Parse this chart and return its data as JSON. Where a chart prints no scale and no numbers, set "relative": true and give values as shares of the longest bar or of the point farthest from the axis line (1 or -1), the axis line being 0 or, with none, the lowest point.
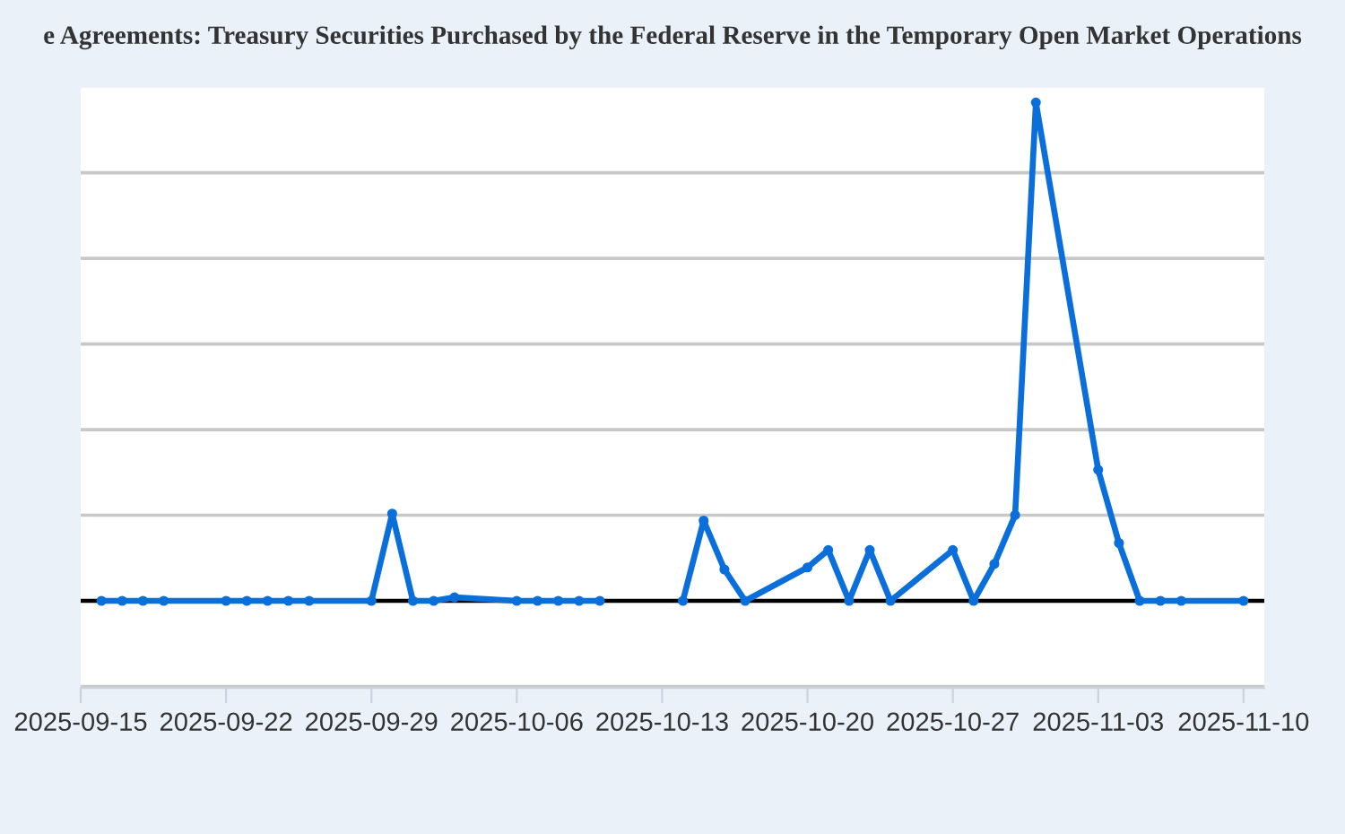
{
  "chart_data": {
    "type": "line",
    "title": "e Agreements: Treasury Securities Purchased by the Federal Reserve in the Temporary Open Market Operations",
    "x": [
      "2025-09-16",
      "2025-09-17",
      "2025-09-18",
      "2025-09-19",
      "2025-09-22",
      "2025-09-23",
      "2025-09-24",
      "2025-09-25",
      "2025-09-26",
      "2025-09-29",
      "2025-09-30",
      "2025-10-01",
      "2025-10-02",
      "2025-10-03",
      "2025-10-06",
      "2025-10-07",
      "2025-10-08",
      "2025-10-09",
      "2025-10-10",
      "2025-10-13",
      "2025-10-14",
      "2025-10-15",
      "2025-10-16",
      "2025-10-17",
      "2025-10-20",
      "2025-10-21",
      "2025-10-22",
      "2025-10-23",
      "2025-10-24",
      "2025-10-27",
      "2025-10-28",
      "2025-10-29",
      "2025-10-30",
      "2025-10-31",
      "2025-11-03",
      "2025-11-04",
      "2025-11-05",
      "2025-11-06",
      "2025-11-07",
      "2025-11-10"
    ],
    "series": [
      {
        "color": "#0a6fdb",
        "values": [
          0,
          0,
          0,
          0,
          0,
          0,
          0,
          0,
          0,
          0,
          0.175,
          0,
          0,
          0.007,
          0,
          0,
          0,
          0,
          0,
          null,
          0,
          0.161,
          0.063,
          0,
          0.067,
          0.102,
          0,
          0.102,
          0,
          0.102,
          0,
          0.074,
          0.172,
          1,
          0.263,
          0.116,
          0,
          0,
          0,
          0
        ]
      }
    ],
    "relative": true,
    "xlim": [
      "2025-09-15",
      "2025-11-11"
    ],
    "xticks": [
      "2025-09-15",
      "2025-09-22",
      "2025-09-29",
      "2025-10-06",
      "2025-10-13",
      "2025-10-20",
      "2025-10-27",
      "2025-11-03",
      "2025-11-10"
    ],
    "grid": "y",
    "marker": "circle",
    "line_style": "solid"
  }
}
